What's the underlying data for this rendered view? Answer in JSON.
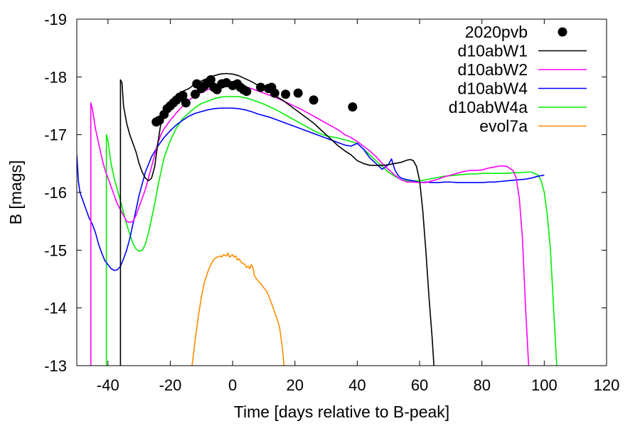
{
  "chart_data": {
    "type": "line",
    "xlabel": "Time [days relative to B-peak]",
    "ylabel": "B [mags]",
    "xlim": [
      -50,
      120
    ],
    "ylim": [
      -13,
      -19
    ],
    "y_axis_inverted": true,
    "grid": false,
    "legend_position": "top-right",
    "xticks": [
      -40,
      -20,
      0,
      20,
      40,
      60,
      80,
      100,
      120
    ],
    "yticks": [
      -13,
      -14,
      -15,
      -16,
      -17,
      -18,
      -19
    ],
    "series": [
      {
        "name": "2020pvb",
        "kind": "points",
        "color": "#000000",
        "x": [
          -24.5,
          -23.5,
          -22,
          -21,
          -20,
          -19,
          -18,
          -17,
          -16,
          -15,
          -12,
          -11.5,
          -10,
          -9,
          -8,
          -7,
          -6,
          -5,
          -3.5,
          -2,
          0,
          1.5,
          2.5,
          3.5,
          4.5,
          9,
          11.5,
          12.5,
          13.5,
          17,
          21,
          26,
          38.5
        ],
        "y": [
          -17.22,
          -17.25,
          -17.35,
          -17.45,
          -17.5,
          -17.55,
          -17.6,
          -17.65,
          -17.68,
          -17.55,
          -17.7,
          -17.88,
          -17.8,
          -17.85,
          -17.9,
          -17.95,
          -17.82,
          -17.78,
          -17.88,
          -17.9,
          -17.85,
          -17.88,
          -17.82,
          -17.78,
          -17.75,
          -17.82,
          -17.8,
          -17.82,
          -17.72,
          -17.7,
          -17.72,
          -17.6,
          -17.48
        ]
      },
      {
        "name": "d10abW1",
        "kind": "line",
        "color": "#000000",
        "x": [
          -36,
          -36,
          -35.5,
          -35,
          -34,
          -33,
          -32,
          -31,
          -30,
          -29,
          -28,
          -27,
          -26,
          -25,
          -24,
          -23,
          -22,
          -21,
          -20,
          -18,
          -16,
          -14,
          -12,
          -10,
          -8,
          -6,
          -4,
          -2,
          0,
          2,
          4,
          6,
          8,
          10,
          12,
          14,
          16,
          18,
          20,
          22,
          24,
          26,
          28,
          30,
          32,
          34,
          36,
          38,
          40,
          42,
          44,
          46,
          48,
          50,
          52,
          54,
          56,
          57,
          58,
          59,
          60,
          61,
          62,
          63,
          64,
          64.6
        ],
        "y": [
          -13,
          -17.95,
          -17.9,
          -17.5,
          -17.2,
          -17.0,
          -16.85,
          -16.7,
          -16.5,
          -16.35,
          -16.25,
          -16.2,
          -16.25,
          -16.45,
          -16.85,
          -17.2,
          -17.4,
          -17.5,
          -17.55,
          -17.65,
          -17.75,
          -17.8,
          -17.88,
          -17.93,
          -17.98,
          -18.02,
          -18.05,
          -18.06,
          -18.05,
          -18.02,
          -17.97,
          -17.92,
          -17.86,
          -17.8,
          -17.73,
          -17.66,
          -17.6,
          -17.52,
          -17.44,
          -17.36,
          -17.28,
          -17.2,
          -17.1,
          -17.0,
          -16.9,
          -16.8,
          -16.72,
          -16.65,
          -16.55,
          -16.5,
          -16.47,
          -16.47,
          -16.47,
          -16.48,
          -16.5,
          -16.52,
          -16.56,
          -16.57,
          -16.55,
          -16.45,
          -16.2,
          -15.7,
          -15.0,
          -14.2,
          -13.5,
          -13
        ]
      },
      {
        "name": "d10abW2",
        "kind": "line",
        "color": "#ff00ff",
        "x": [
          -45.5,
          -45.5,
          -45,
          -44,
          -43,
          -42,
          -41,
          -40,
          -39,
          -38,
          -37,
          -36,
          -35,
          -34,
          -33,
          -32,
          -31,
          -30,
          -29,
          -28,
          -27,
          -26,
          -25,
          -24,
          -23,
          -22,
          -20,
          -18,
          -16,
          -14,
          -12,
          -10,
          -8,
          -6,
          -4,
          -2,
          0,
          2,
          4,
          6,
          8,
          10,
          12,
          14,
          16,
          18,
          20,
          22,
          24,
          26,
          28,
          30,
          32,
          34,
          36,
          38,
          40,
          42,
          44,
          46,
          48,
          50,
          52,
          54,
          56,
          58,
          60,
          62,
          64,
          66,
          68,
          70,
          72,
          74,
          76,
          78,
          80,
          82,
          84,
          86,
          88,
          90,
          91,
          92,
          93,
          94,
          95
        ],
        "y": [
          -13,
          -17.55,
          -17.45,
          -17.1,
          -16.85,
          -16.6,
          -16.4,
          -16.25,
          -16.1,
          -15.95,
          -15.8,
          -15.7,
          -15.6,
          -15.5,
          -15.48,
          -15.5,
          -15.6,
          -15.75,
          -15.9,
          -16.05,
          -16.25,
          -16.45,
          -16.65,
          -16.85,
          -17.0,
          -17.1,
          -17.25,
          -17.38,
          -17.5,
          -17.6,
          -17.67,
          -17.73,
          -17.78,
          -17.82,
          -17.85,
          -17.86,
          -17.86,
          -17.85,
          -17.83,
          -17.8,
          -17.76,
          -17.72,
          -17.68,
          -17.64,
          -17.59,
          -17.54,
          -17.49,
          -17.44,
          -17.38,
          -17.32,
          -17.26,
          -17.2,
          -17.14,
          -17.08,
          -17.0,
          -16.95,
          -16.88,
          -16.8,
          -16.72,
          -16.62,
          -16.5,
          -16.4,
          -16.3,
          -16.22,
          -16.18,
          -16.18,
          -16.17,
          -16.17,
          -16.2,
          -16.23,
          -16.27,
          -16.3,
          -16.33,
          -16.36,
          -16.38,
          -16.38,
          -16.39,
          -16.42,
          -16.44,
          -16.46,
          -16.45,
          -16.38,
          -16.25,
          -15.9,
          -15.2,
          -14.0,
          -13
        ]
      },
      {
        "name": "d10abW4",
        "kind": "line",
        "color": "#0000ff",
        "x": [
          -50,
          -49.5,
          -49,
          -48,
          -47,
          -46,
          -45,
          -44,
          -43,
          -42,
          -41,
          -40,
          -39,
          -38,
          -37,
          -36,
          -35,
          -34,
          -33,
          -32,
          -31,
          -30,
          -29,
          -28,
          -26,
          -24,
          -22,
          -20,
          -18,
          -16,
          -14,
          -12,
          -10,
          -8,
          -6,
          -4,
          -2,
          0,
          2,
          4,
          6,
          8,
          10,
          12,
          14,
          16,
          18,
          20,
          22,
          24,
          26,
          28,
          30,
          32,
          34,
          36,
          38,
          40,
          42,
          44,
          46,
          48,
          50,
          51,
          52,
          53,
          54,
          56,
          58,
          60,
          62,
          64,
          66,
          68,
          70,
          72,
          74,
          76,
          78,
          80,
          82,
          84,
          86,
          88,
          90,
          92,
          94,
          96,
          98,
          100
        ],
        "y": [
          -16.65,
          -16.2,
          -16.0,
          -15.85,
          -15.7,
          -15.55,
          -15.45,
          -15.3,
          -15.1,
          -14.95,
          -14.82,
          -14.75,
          -14.68,
          -14.65,
          -14.66,
          -14.72,
          -14.85,
          -15.0,
          -15.2,
          -15.45,
          -15.7,
          -15.95,
          -16.15,
          -16.35,
          -16.62,
          -16.8,
          -16.95,
          -17.07,
          -17.17,
          -17.25,
          -17.32,
          -17.37,
          -17.4,
          -17.43,
          -17.45,
          -17.46,
          -17.46,
          -17.46,
          -17.45,
          -17.43,
          -17.4,
          -17.36,
          -17.33,
          -17.3,
          -17.26,
          -17.22,
          -17.18,
          -17.14,
          -17.1,
          -17.06,
          -17.02,
          -16.98,
          -16.94,
          -16.9,
          -16.86,
          -16.82,
          -16.8,
          -16.85,
          -16.75,
          -16.6,
          -16.5,
          -16.4,
          -16.48,
          -16.58,
          -16.4,
          -16.3,
          -16.25,
          -16.22,
          -16.2,
          -16.17,
          -16.18,
          -16.17,
          -16.17,
          -16.18,
          -16.18,
          -16.17,
          -16.17,
          -16.17,
          -16.17,
          -16.17,
          -16.18,
          -16.18,
          -16.19,
          -16.2,
          -16.21,
          -16.22,
          -16.23,
          -16.25,
          -16.28,
          -16.3
        ]
      },
      {
        "name": "d10abW4a",
        "kind": "line",
        "color": "#00ee00",
        "x": [
          -40.5,
          -40.5,
          -40,
          -39,
          -38,
          -37,
          -36,
          -35,
          -34,
          -33,
          -32,
          -31,
          -30,
          -29,
          -28,
          -27,
          -26,
          -25,
          -24,
          -23,
          -22,
          -20,
          -18,
          -16,
          -14,
          -12,
          -10,
          -8,
          -6,
          -4,
          -2,
          0,
          2,
          4,
          6,
          8,
          10,
          12,
          14,
          16,
          18,
          20,
          22,
          24,
          26,
          28,
          30,
          32,
          34,
          36,
          38,
          40,
          42,
          44,
          46,
          48,
          50,
          52,
          54,
          56,
          58,
          60,
          62,
          64,
          66,
          68,
          70,
          72,
          74,
          76,
          78,
          80,
          82,
          84,
          86,
          88,
          90,
          92,
          94,
          96,
          98,
          99,
          100,
          101,
          102,
          103,
          104
        ],
        "y": [
          -13,
          -17.0,
          -16.9,
          -16.5,
          -16.25,
          -16.05,
          -15.85,
          -15.65,
          -15.45,
          -15.28,
          -15.12,
          -15.02,
          -14.98,
          -15.0,
          -15.1,
          -15.3,
          -15.55,
          -15.8,
          -16.1,
          -16.35,
          -16.6,
          -16.9,
          -17.12,
          -17.28,
          -17.38,
          -17.47,
          -17.54,
          -17.58,
          -17.62,
          -17.65,
          -17.66,
          -17.66,
          -17.66,
          -17.64,
          -17.61,
          -17.57,
          -17.53,
          -17.48,
          -17.43,
          -17.37,
          -17.31,
          -17.25,
          -17.19,
          -17.13,
          -17.07,
          -17.02,
          -16.98,
          -16.96,
          -16.94,
          -16.91,
          -16.88,
          -16.85,
          -16.75,
          -16.65,
          -16.55,
          -16.45,
          -16.35,
          -16.28,
          -16.22,
          -16.2,
          -16.2,
          -16.2,
          -16.22,
          -16.24,
          -16.26,
          -16.28,
          -16.29,
          -16.3,
          -16.31,
          -16.32,
          -16.32,
          -16.33,
          -16.33,
          -16.33,
          -16.33,
          -16.33,
          -16.34,
          -16.34,
          -16.35,
          -16.35,
          -16.3,
          -16.2,
          -16.0,
          -15.6,
          -15.0,
          -14.0,
          -13
        ]
      },
      {
        "name": "evol7a",
        "kind": "line",
        "color": "#ff8c00",
        "x": [
          -13,
          -12,
          -11,
          -10,
          -9,
          -8,
          -7,
          -6,
          -5,
          -4,
          -3.5,
          -3,
          -2,
          -1.5,
          -1,
          0,
          0.5,
          1,
          1.5,
          2,
          3,
          4,
          4.5,
          5,
          5.5,
          6,
          6.5,
          7,
          8,
          9,
          10,
          11,
          12,
          13,
          14,
          15,
          15.5,
          16,
          16.5
        ],
        "y": [
          -13,
          -13.45,
          -13.85,
          -14.2,
          -14.45,
          -14.62,
          -14.75,
          -14.84,
          -14.88,
          -14.9,
          -14.88,
          -14.92,
          -14.9,
          -14.95,
          -14.88,
          -14.92,
          -14.88,
          -14.9,
          -14.83,
          -14.85,
          -14.78,
          -14.75,
          -14.7,
          -14.72,
          -14.68,
          -14.75,
          -14.7,
          -14.55,
          -14.48,
          -14.42,
          -14.35,
          -14.28,
          -14.15,
          -14.0,
          -13.85,
          -13.68,
          -13.5,
          -13.3,
          -13
        ]
      }
    ]
  }
}
